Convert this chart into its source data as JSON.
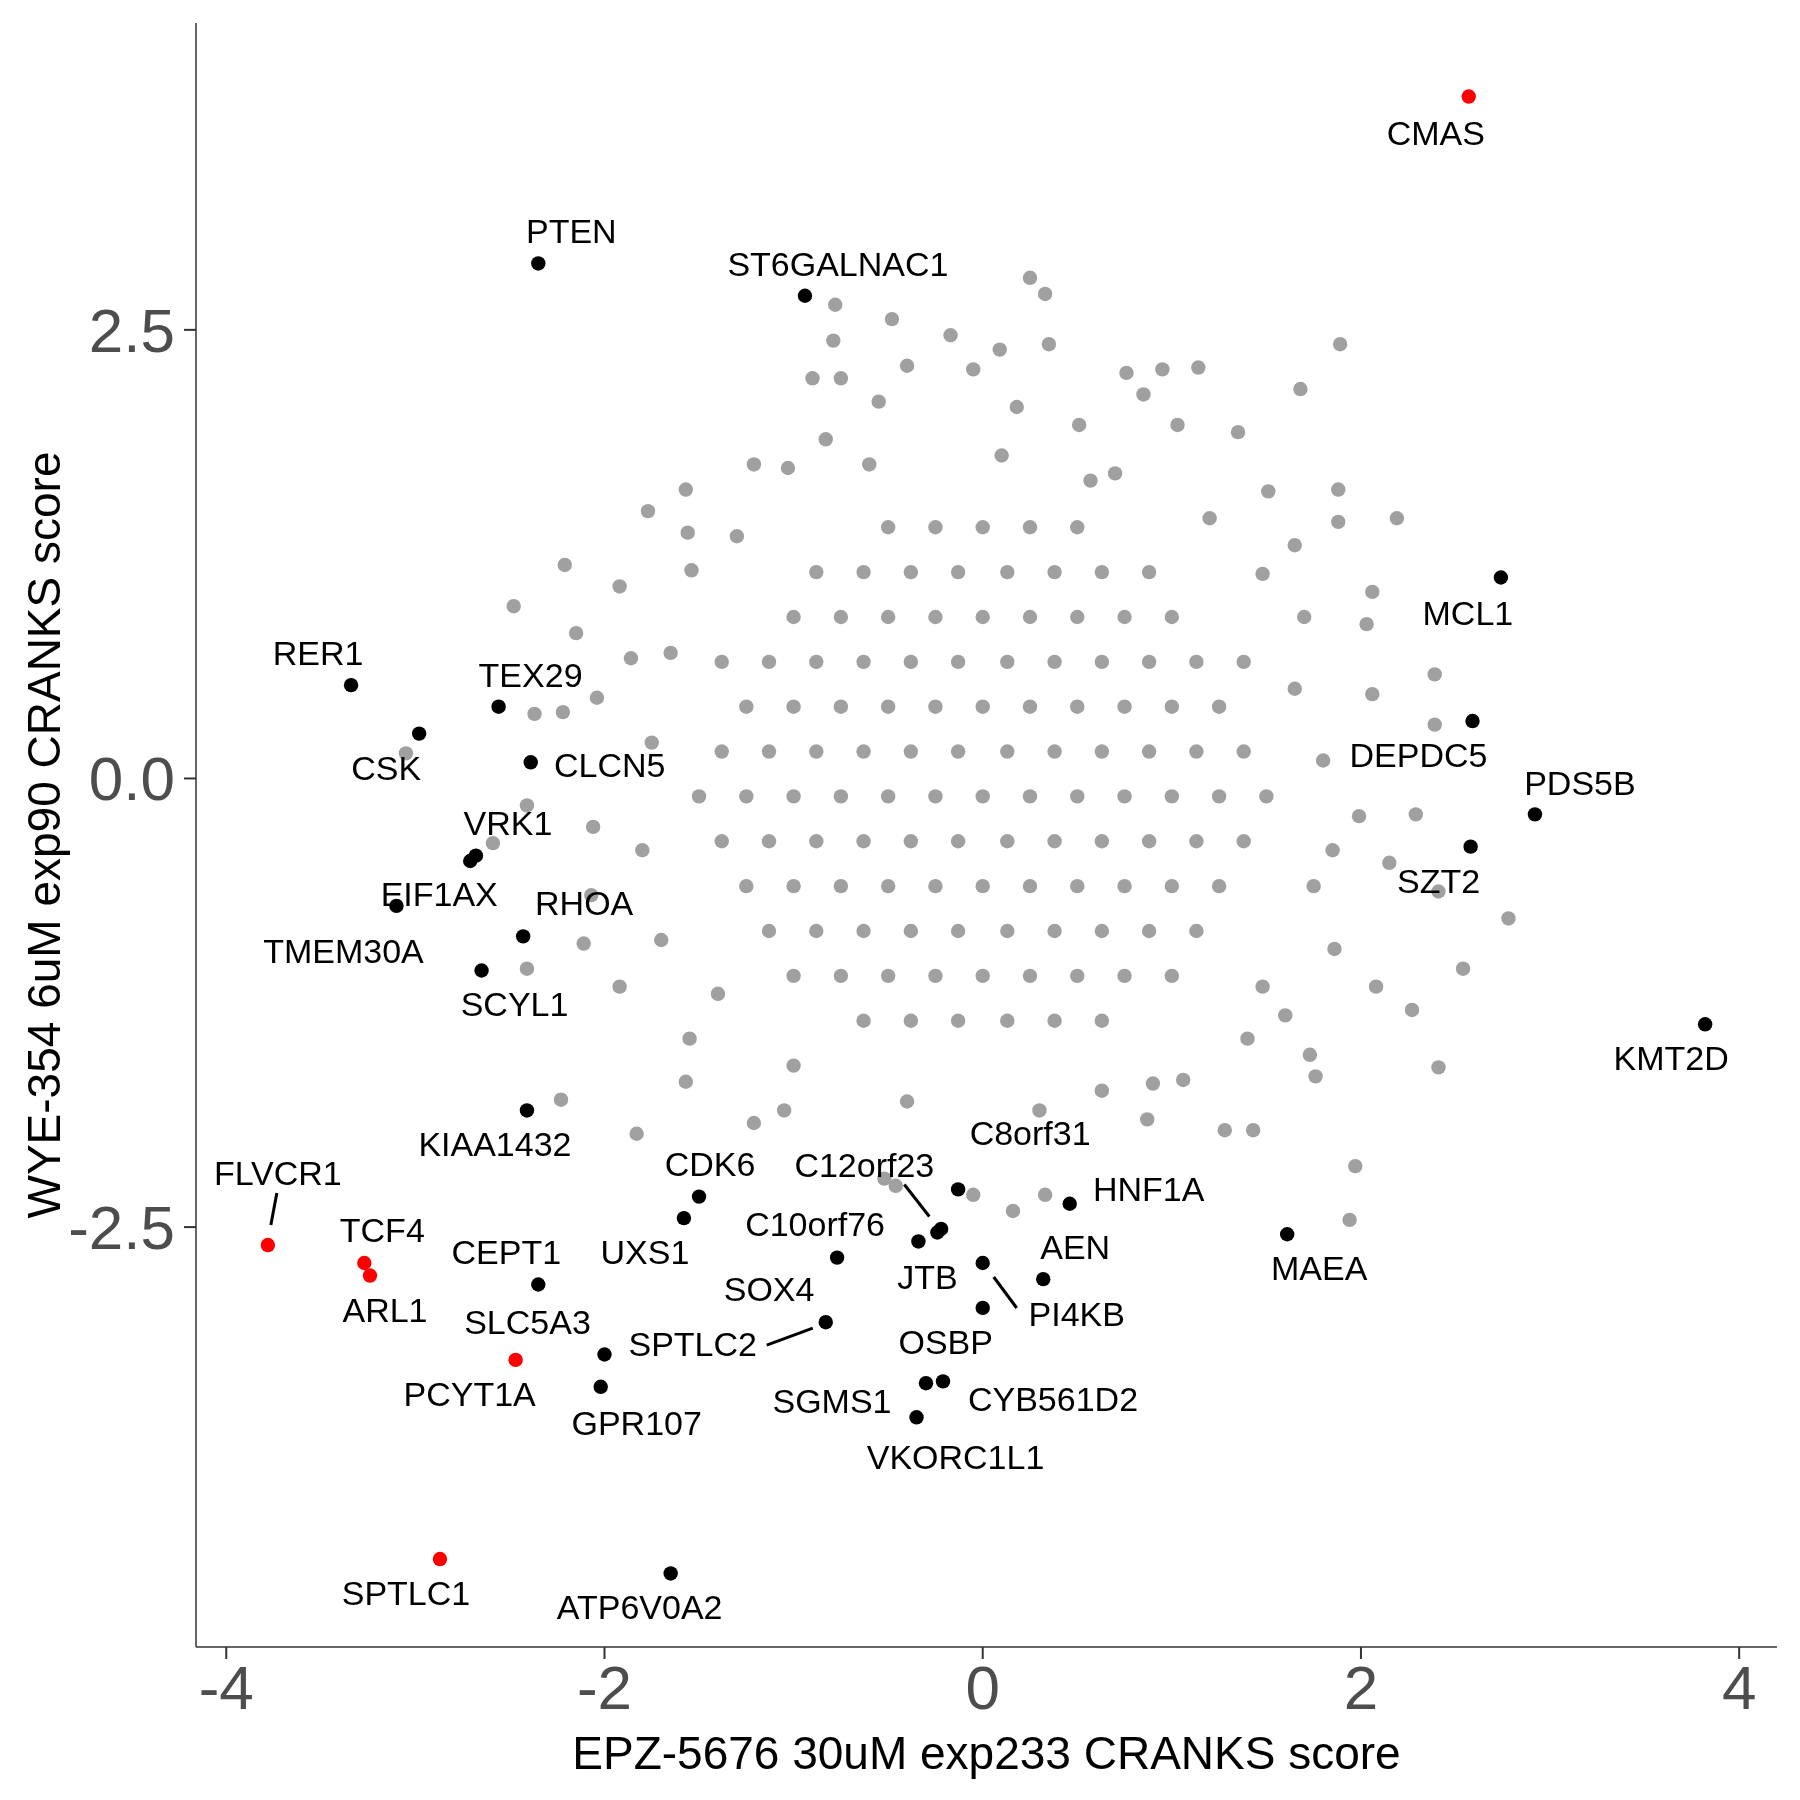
{
  "chart_data": {
    "type": "scatter",
    "xlabel": "EPZ-5676 30uM exp233 CRANKS score",
    "ylabel": "WYE-354 6uM exp90 CRANKS score",
    "xlim": [
      -4.16,
      4.2
    ],
    "ylim": [
      -4.84,
      4.21
    ],
    "xticks": [
      -4,
      -2,
      0,
      2,
      4
    ],
    "yticks": [
      -2.5,
      {
        "value": 0,
        "label": "0.0"
      },
      2.5
    ],
    "marker": "circle",
    "series": [
      {
        "color": "#a0a0a0",
        "x": [
          -0.5,
          -0.25,
          0,
          0.25,
          0.5,
          -0.88,
          -0.63,
          -0.38,
          -0.13,
          0.13,
          0.38,
          0.63,
          0.88,
          -1,
          -0.75,
          -0.5,
          -0.25,
          0,
          0.25,
          0.5,
          0.75,
          1,
          -1.38,
          -1.13,
          -0.88,
          -0.63,
          -0.38,
          -0.13,
          0.13,
          0.38,
          0.63,
          0.88,
          1.13,
          1.38,
          -1.25,
          -1,
          -0.75,
          -0.5,
          -0.25,
          0,
          0.25,
          0.5,
          0.75,
          1,
          1.25,
          -1.38,
          -1.13,
          -0.88,
          -0.63,
          -0.38,
          -0.13,
          0.13,
          0.38,
          0.63,
          0.88,
          1.13,
          1.38,
          -1.5,
          -1.25,
          -1,
          -0.75,
          -0.5,
          -0.25,
          0,
          0.25,
          0.5,
          0.75,
          1,
          1.25,
          1.5,
          -1.38,
          -1.13,
          -0.88,
          -0.63,
          -0.38,
          -0.13,
          0.13,
          0.38,
          0.63,
          0.88,
          1.13,
          1.38,
          -1.25,
          -1,
          -0.75,
          -0.5,
          -0.25,
          0,
          0.25,
          0.5,
          0.75,
          1,
          1.25,
          -1.13,
          -0.88,
          -0.63,
          -0.38,
          -0.13,
          0.13,
          0.38,
          0.63,
          0.88,
          1.13,
          -1,
          -0.75,
          -0.5,
          -0.25,
          0,
          0.25,
          0.5,
          0.75,
          1,
          -0.63,
          -0.38,
          -0.13,
          0.13,
          0.38,
          0.63,
          0.25,
          0.33,
          -0.78,
          -0.48,
          -0.79,
          -0.17,
          0.09,
          0.35,
          1.89,
          -0.4,
          -0.9,
          -0.75,
          0.95,
          1.14,
          1.68,
          -0.55,
          0.85,
          0.51,
          1.03,
          1.35,
          -0.83,
          -1.21,
          -1.03,
          1.88,
          2.19,
          1.88,
          -1.77,
          -1.57,
          -1.56,
          -2.21,
          -2.48,
          -1.92,
          -2.15,
          -2.04,
          -2.37,
          -2.22,
          -3.05,
          -2.41,
          -2.59,
          -2.41,
          -2.06,
          -2.11,
          -2.23,
          -1.83,
          -1.57,
          -1.21,
          -1.05,
          -0.52,
          -0.46,
          -0.05,
          0.16,
          0.33,
          1.28,
          1.43,
          1.97,
          1.94,
          2.41,
          2.54,
          2.78,
          2.41,
          2.27,
          2.08,
          1.73,
          1.76,
          2.15,
          2.29,
          2.39,
          2.39,
          2.03,
          2.06,
          2.06,
          1.99,
          1.85,
          1.86,
          1.6,
          1.65,
          1.51,
          0.76,
          -0.05,
          0.18,
          0.57,
          -1.54,
          -1.86,
          -2.07,
          -1.92,
          -1.55,
          1.06,
          0.63,
          0.87,
          1.48,
          1.65,
          1.48,
          -1.75,
          -1.8,
          -1.7,
          -1.65,
          -1.3,
          -0.6,
          0.1,
          0.7,
          1.2,
          1.7,
          1.8,
          1.75,
          1.4,
          0.9,
          0.3,
          -0.4,
          -1.0,
          -1.4
        ],
        "values": [
          1.4,
          1.4,
          1.4,
          1.4,
          1.4,
          1.15,
          1.15,
          1.15,
          1.15,
          1.15,
          1.15,
          1.15,
          1.15,
          0.9,
          0.9,
          0.9,
          0.9,
          0.9,
          0.9,
          0.9,
          0.9,
          0.9,
          0.65,
          0.65,
          0.65,
          0.65,
          0.65,
          0.65,
          0.65,
          0.65,
          0.65,
          0.65,
          0.65,
          0.65,
          0.4,
          0.4,
          0.4,
          0.4,
          0.4,
          0.4,
          0.4,
          0.4,
          0.4,
          0.4,
          0.4,
          0.15,
          0.15,
          0.15,
          0.15,
          0.15,
          0.15,
          0.15,
          0.15,
          0.15,
          0.15,
          0.15,
          0.15,
          -0.1,
          -0.1,
          -0.1,
          -0.1,
          -0.1,
          -0.1,
          -0.1,
          -0.1,
          -0.1,
          -0.1,
          -0.1,
          -0.1,
          -0.1,
          -0.35,
          -0.35,
          -0.35,
          -0.35,
          -0.35,
          -0.35,
          -0.35,
          -0.35,
          -0.35,
          -0.35,
          -0.35,
          -0.35,
          -0.6,
          -0.6,
          -0.6,
          -0.6,
          -0.6,
          -0.6,
          -0.6,
          -0.6,
          -0.6,
          -0.6,
          -0.6,
          -0.85,
          -0.85,
          -0.85,
          -0.85,
          -0.85,
          -0.85,
          -0.85,
          -0.85,
          -0.85,
          -0.85,
          -1.1,
          -1.1,
          -1.1,
          -1.1,
          -1.1,
          -1.1,
          -1.1,
          -1.1,
          -1.1,
          -1.35,
          -1.35,
          -1.35,
          -1.35,
          -1.35,
          -1.35,
          2.79,
          2.7,
          2.64,
          2.56,
          2.44,
          2.47,
          2.39,
          2.42,
          2.42,
          2.3,
          2.23,
          2.23,
          2.28,
          2.29,
          2.17,
          2.1,
          2.14,
          1.97,
          1.97,
          1.93,
          1.89,
          1.75,
          1.73,
          1.61,
          1.45,
          1.43,
          1.49,
          1.61,
          1.37,
          1.19,
          0.96,
          1.07,
          0.81,
          0.45,
          0.36,
          0.37,
          0.14,
          -0.15,
          -0.36,
          -1.06,
          -0.27,
          -0.92,
          -1.79,
          -1.98,
          -1.69,
          -1.92,
          -1.85,
          -2.23,
          -2.27,
          -2.32,
          -2.41,
          -2.32,
          -1.96,
          -1.96,
          -2.16,
          -2.46,
          -1.61,
          -1.06,
          -0.78,
          -0.63,
          -1.29,
          -1.16,
          -1.54,
          -1.66,
          -0.47,
          -0.2,
          0.3,
          0.58,
          0.86,
          1.04,
          0.47,
          -0.21,
          -0.4,
          -0.95,
          -1.32,
          1.3,
          1.6,
          2.26,
          2.28,
          2.07,
          1.66,
          1.16,
          0.67,
          -0.65,
          -1.16,
          -1.45,
          -1.68,
          -1.74,
          -1.9,
          -1.16,
          0.5,
          1.14,
          0.2,
          -0.4,
          -0.9,
          0.7,
          1.35,
          1.75,
          1.8,
          1.7,
          1.45,
          0.9,
          0.1,
          -0.6,
          -1.45,
          -1.7,
          -1.85,
          -1.8,
          -1.6,
          -1.2
        ]
      },
      {
        "color": "#000000",
        "x": [
          -2.35,
          -0.94,
          2.74,
          -3.34,
          -2.56,
          -2.98,
          -2.39,
          2.59,
          2.92,
          -2.68,
          -2.71,
          -3.1,
          -2.43,
          -2.65,
          2.58,
          3.82,
          -2.41,
          -2.35,
          -2.0,
          -2.02,
          -1.65,
          -1.5,
          -1.58,
          -0.13,
          -0.24,
          0.46,
          -0.77,
          -0.22,
          -0.34,
          0.32,
          0,
          0,
          -0.83,
          -0.3,
          -0.21,
          -0.35,
          1.61
        ],
        "values": [
          2.87,
          2.69,
          1.12,
          0.52,
          0.4,
          0.25,
          0.09,
          0.32,
          -0.2,
          -0.43,
          -0.46,
          -0.71,
          -0.88,
          -1.07,
          -0.38,
          -1.37,
          -1.85,
          -2.82,
          -3.21,
          -3.39,
          -4.43,
          -2.33,
          -2.45,
          -2.29,
          -2.53,
          -2.37,
          -2.67,
          -2.51,
          -2.58,
          -2.79,
          -2.7,
          -2.95,
          -3.03,
          -3.37,
          -3.36,
          -3.56,
          -2.54
        ]
      },
      {
        "color": "#ff0000",
        "x": [
          2.57,
          -3.78,
          -3.27,
          -3.24,
          -2.47,
          -2.87
        ],
        "values": [
          3.8,
          -2.6,
          -2.7,
          -2.77,
          -3.24,
          -4.35
        ]
      }
    ],
    "annotations": [
      {
        "text": "CMAS",
        "x": 2.57,
        "y": 3.8
      },
      {
        "text": "PTEN",
        "x": -2.35,
        "y": 2.87
      },
      {
        "text": "ST6GALNAC1",
        "x": -0.94,
        "y": 2.69
      },
      {
        "text": "MCL1",
        "x": 2.74,
        "y": 1.12
      },
      {
        "text": "RER1",
        "x": -3.34,
        "y": 0.52
      },
      {
        "text": "TEX29",
        "x": -2.56,
        "y": 0.4
      },
      {
        "text": "CSK",
        "x": -2.98,
        "y": 0.25
      },
      {
        "text": "CLCN5",
        "x": -2.39,
        "y": 0.09
      },
      {
        "text": "DEPDC5",
        "x": 2.59,
        "y": 0.32
      },
      {
        "text": "PDS5B",
        "x": 2.92,
        "y": -0.2
      },
      {
        "text": "VRK1",
        "x": -2.68,
        "y": -0.43
      },
      {
        "text": "EIF1AX",
        "x": -2.71,
        "y": -0.46
      },
      {
        "text": "TMEM30A",
        "x": -3.1,
        "y": -0.71
      },
      {
        "text": "RHOA",
        "x": -2.43,
        "y": -0.88
      },
      {
        "text": "SCYL1",
        "x": -2.65,
        "y": -1.07
      },
      {
        "text": "SZT2",
        "x": 2.58,
        "y": -0.38
      },
      {
        "text": "KMT2D",
        "x": 3.82,
        "y": -1.37
      },
      {
        "text": "KIAA1432",
        "x": -2.41,
        "y": -1.85
      },
      {
        "text": "FLVCR1",
        "x": -3.78,
        "y": -2.6
      },
      {
        "text": "TCF4",
        "x": -3.27,
        "y": -2.7
      },
      {
        "text": "ARL1",
        "x": -3.24,
        "y": -2.77
      },
      {
        "text": "CEPT1",
        "x": -2.35,
        "y": -2.82
      },
      {
        "text": "SLC5A3",
        "x": -2.0,
        "y": -3.21
      },
      {
        "text": "PCYT1A",
        "x": -2.47,
        "y": -3.24
      },
      {
        "text": "GPR107",
        "x": -2.02,
        "y": -3.39
      },
      {
        "text": "SPTLC1",
        "x": -2.87,
        "y": -4.35
      },
      {
        "text": "ATP6V0A2",
        "x": -1.65,
        "y": -4.43
      },
      {
        "text": "CDK6",
        "x": -1.5,
        "y": -2.33
      },
      {
        "text": "UXS1",
        "x": -1.58,
        "y": -2.45
      },
      {
        "text": "C8orf31",
        "x": -0.13,
        "y": -2.29
      },
      {
        "text": "C12orf23",
        "x": -0.24,
        "y": -2.53
      },
      {
        "text": "HNF1A",
        "x": 0.46,
        "y": -2.37
      },
      {
        "text": "C10orf76",
        "x": -0.77,
        "y": -2.67
      },
      {
        "text": "SOX4",
        "x": -0.77,
        "y": -2.67
      },
      {
        "text": "JTB",
        "x": -0.34,
        "y": -2.58
      },
      {
        "text": "AEN",
        "x": 0.32,
        "y": -2.79
      },
      {
        "text": "PI4KB",
        "x": 0,
        "y": -2.7
      },
      {
        "text": "OSBP",
        "x": 0,
        "y": -2.95
      },
      {
        "text": "SPTLC2",
        "x": -0.83,
        "y": -3.03
      },
      {
        "text": "SGMS1",
        "x": -0.3,
        "y": -3.37
      },
      {
        "text": "CYB561D2",
        "x": -0.21,
        "y": -3.36
      },
      {
        "text": "VKORC1L1",
        "x": -0.35,
        "y": -3.56
      },
      {
        "text": "MAEA",
        "x": 1.61,
        "y": -2.54
      }
    ]
  }
}
